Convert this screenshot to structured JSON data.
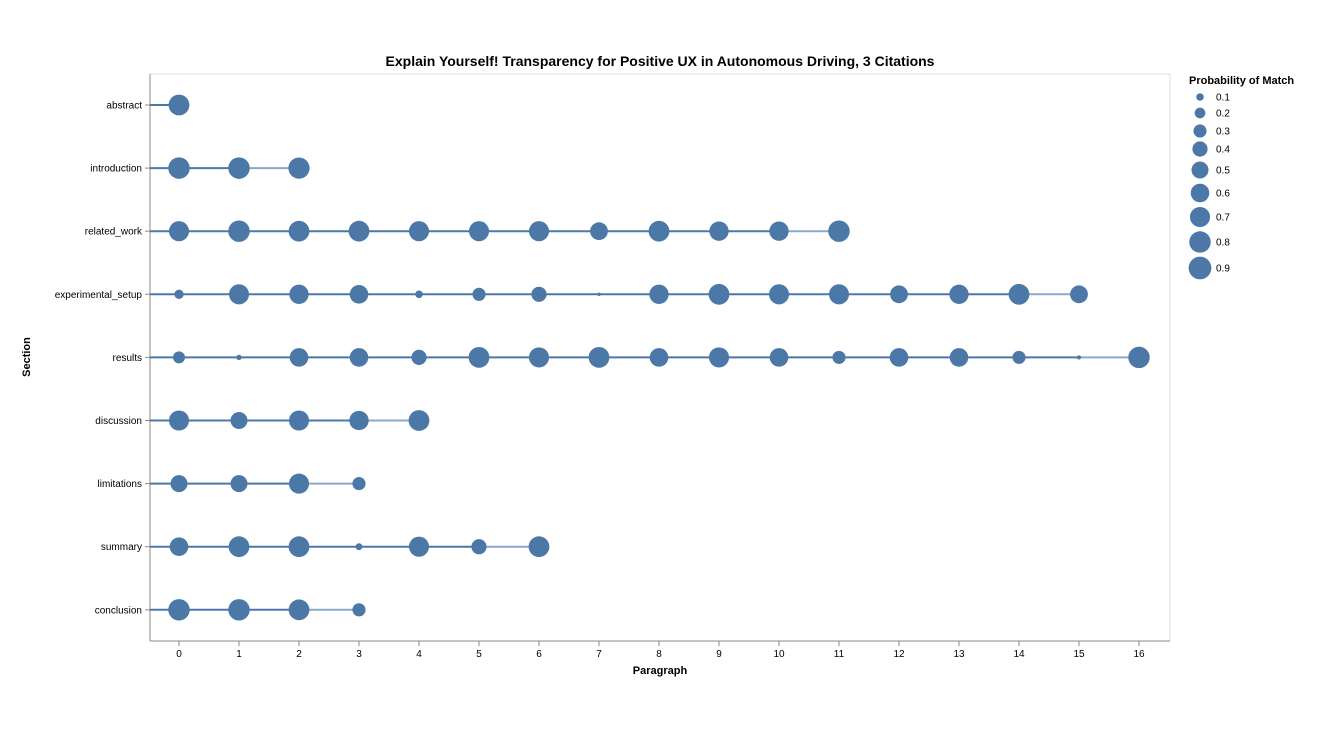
{
  "chart_data": {
    "type": "scatter",
    "title": "Explain Yourself! Transparency for Positive UX in Autonomous Driving, 3 Citations",
    "xlabel": "Paragraph",
    "ylabel": "Section",
    "x_ticks": [
      0,
      1,
      2,
      3,
      4,
      5,
      6,
      7,
      8,
      9,
      10,
      11,
      12,
      13,
      14,
      15,
      16
    ],
    "xlim": [
      -0.5,
      16.5
    ],
    "categories": [
      "abstract",
      "introduction",
      "related_work",
      "experimental_setup",
      "results",
      "discussion",
      "limitations",
      "summary",
      "conclusion"
    ],
    "color": "#4c78a8",
    "grid": false,
    "legend": {
      "title": "Probability of Match",
      "position": "top-right",
      "values": [
        0.1,
        0.2,
        0.3,
        0.4,
        0.5,
        0.6,
        0.7,
        0.8,
        0.9
      ],
      "labels": [
        "0.1",
        "0.2",
        "0.3",
        "0.4",
        "0.5",
        "0.6",
        "0.7",
        "0.8",
        "0.9"
      ]
    },
    "series": [
      {
        "section": "abstract",
        "paragraphs": [
          0
        ],
        "probabilities": [
          0.75
        ]
      },
      {
        "section": "introduction",
        "paragraphs": [
          0,
          1,
          2
        ],
        "probabilities": [
          0.8,
          0.8,
          0.78
        ]
      },
      {
        "section": "related_work",
        "paragraphs": [
          0,
          1,
          2,
          3,
          4,
          5,
          6,
          7,
          8,
          9,
          10,
          11
        ],
        "probabilities": [
          0.7,
          0.8,
          0.75,
          0.75,
          0.7,
          0.7,
          0.7,
          0.55,
          0.75,
          0.65,
          0.65,
          0.8
        ]
      },
      {
        "section": "experimental_setup",
        "paragraphs": [
          0,
          1,
          2,
          3,
          4,
          5,
          6,
          7,
          8,
          9,
          10,
          11,
          12,
          13,
          14,
          15
        ],
        "probabilities": [
          0.15,
          0.7,
          0.65,
          0.6,
          0.1,
          0.3,
          0.4,
          0.02,
          0.65,
          0.75,
          0.7,
          0.7,
          0.55,
          0.65,
          0.75,
          0.55
        ]
      },
      {
        "section": "results",
        "paragraphs": [
          0,
          1,
          2,
          3,
          4,
          5,
          6,
          7,
          8,
          9,
          10,
          11,
          12,
          13,
          14,
          15,
          16
        ],
        "probabilities": [
          0.25,
          0.05,
          0.6,
          0.6,
          0.4,
          0.75,
          0.7,
          0.75,
          0.6,
          0.7,
          0.6,
          0.3,
          0.6,
          0.6,
          0.3,
          0.03,
          0.8
        ]
      },
      {
        "section": "discussion",
        "paragraphs": [
          0,
          1,
          2,
          3,
          4
        ],
        "probabilities": [
          0.7,
          0.5,
          0.7,
          0.65,
          0.75
        ]
      },
      {
        "section": "limitations",
        "paragraphs": [
          0,
          1,
          2,
          3
        ],
        "probabilities": [
          0.5,
          0.5,
          0.7,
          0.3
        ]
      },
      {
        "section": "summary",
        "paragraphs": [
          0,
          1,
          2,
          3,
          4,
          5,
          6
        ],
        "probabilities": [
          0.6,
          0.75,
          0.75,
          0.08,
          0.7,
          0.4,
          0.75
        ]
      },
      {
        "section": "conclusion",
        "paragraphs": [
          0,
          1,
          2,
          3
        ],
        "probabilities": [
          0.8,
          0.8,
          0.75,
          0.3
        ]
      }
    ]
  }
}
